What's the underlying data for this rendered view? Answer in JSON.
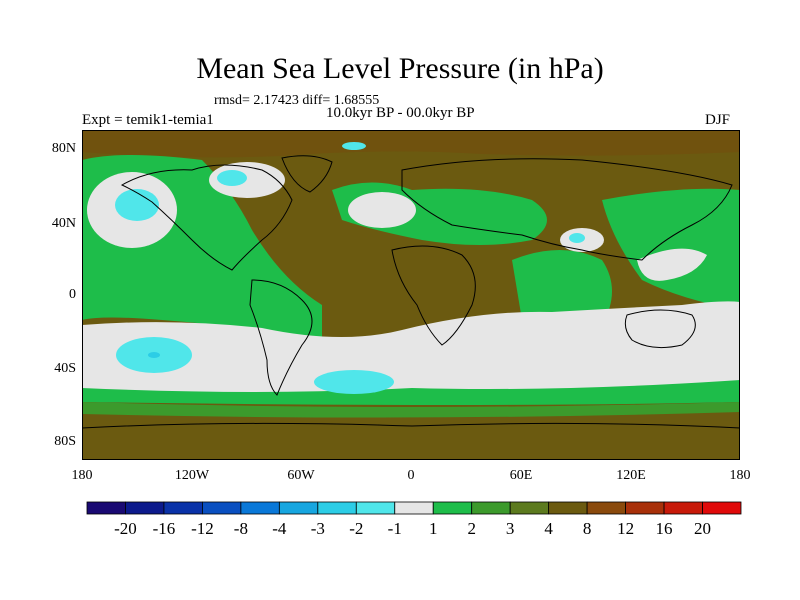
{
  "figure": {
    "title": "Mean Sea Level Pressure (in hPa)",
    "stats": "rmsd= 2.17423 diff= 1.68555",
    "experiment": "Expt = temik1-temia1",
    "period": "10.0kyr BP - 00.0kyr BP",
    "season": "DJF"
  },
  "axes": {
    "lat_ticks": [
      "80N",
      "40N",
      "0",
      "40S",
      "80S"
    ],
    "lon_ticks": [
      "180",
      "120W",
      "60W",
      "0",
      "60E",
      "120E",
      "180"
    ]
  },
  "legend": {
    "labels": [
      "-20",
      "-16",
      "-12",
      "-8",
      "-4",
      "-3",
      "-2",
      "-1",
      "1",
      "2",
      "3",
      "4",
      "8",
      "12",
      "16",
      "20"
    ],
    "colors": [
      "#1a0a73",
      "#0c1a8c",
      "#0a32a8",
      "#0a4fc0",
      "#0a78d8",
      "#17a6e0",
      "#2ccde6",
      "#50e6ea",
      "#e6e6e6",
      "#1ebd4a",
      "#3c9a2c",
      "#5c7a1e",
      "#6b5a10",
      "#8a4a0c",
      "#a8300a",
      "#c81a0a",
      "#e00a0a"
    ]
  },
  "chart_data": {
    "type": "map",
    "variable": "Mean Sea Level Pressure (in hPa)",
    "levels": [
      -20,
      -16,
      -12,
      -8,
      -4,
      -3,
      -2,
      -1,
      1,
      2,
      3,
      4,
      8,
      12,
      16,
      20
    ],
    "lon_range": [
      -180,
      180
    ],
    "lat_range": [
      -90,
      90
    ]
  }
}
